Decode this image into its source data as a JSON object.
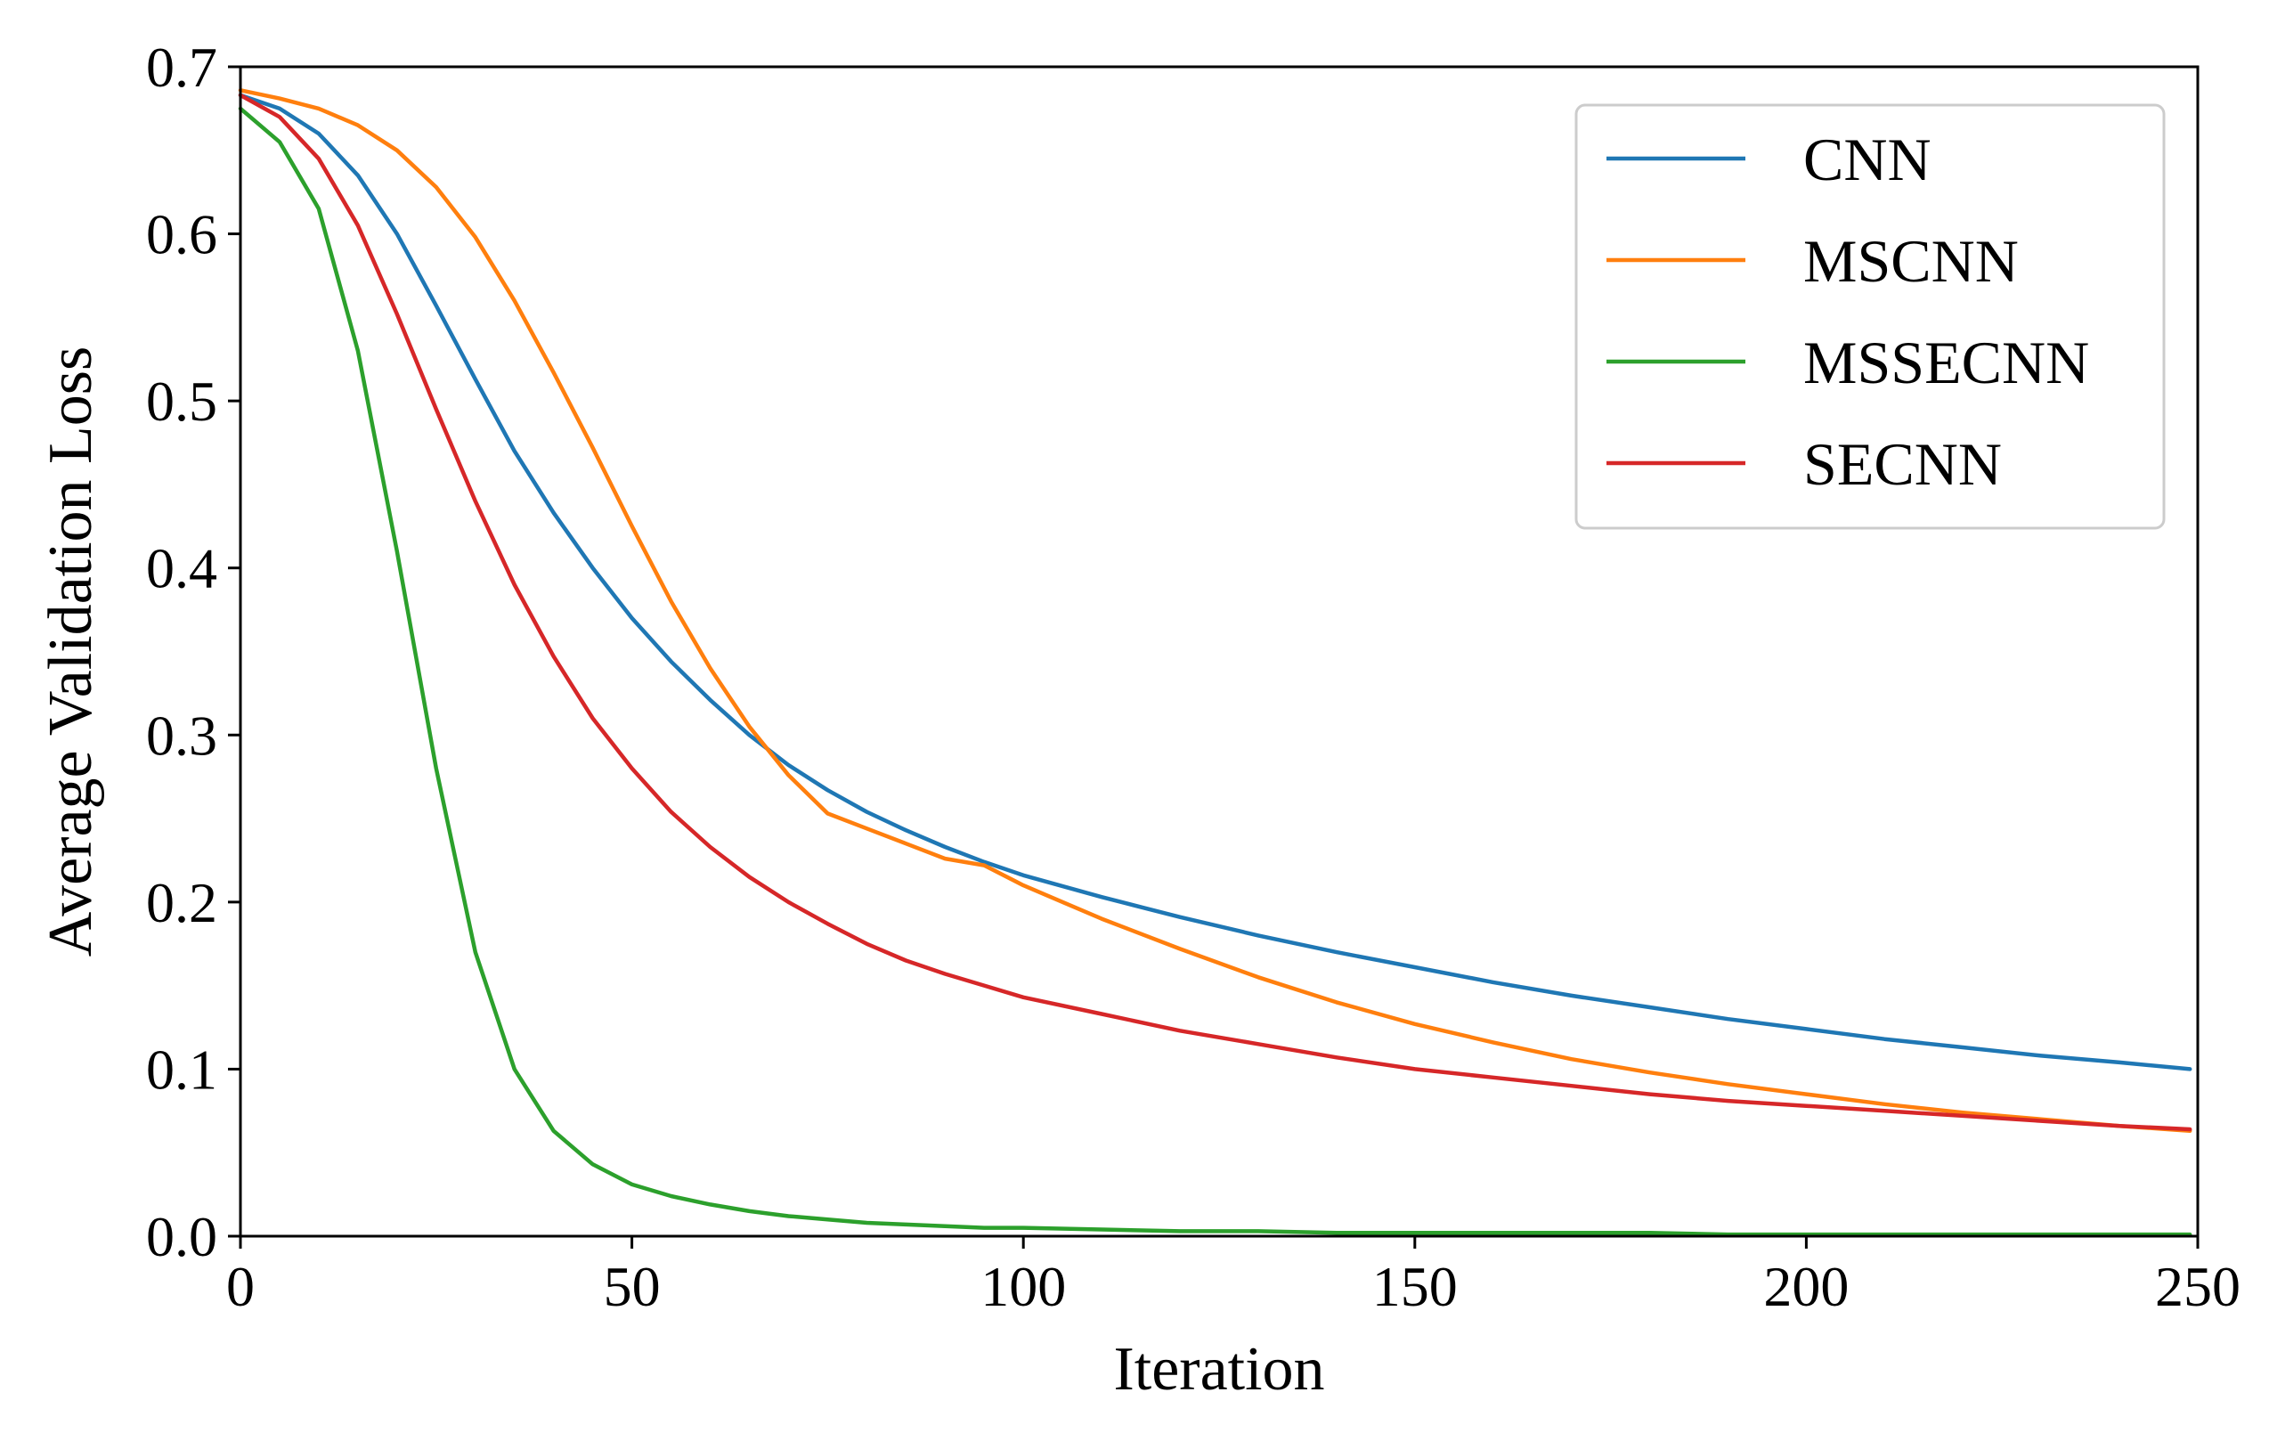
{
  "chart_data": {
    "type": "line",
    "title": "",
    "xlabel": "Iteration",
    "ylabel": "Average Validation Loss",
    "xlim": [
      0,
      250
    ],
    "ylim": [
      0.0,
      0.7
    ],
    "xticks": [
      0,
      50,
      100,
      150,
      200,
      250
    ],
    "xtick_labels": [
      "0",
      "50",
      "100",
      "150",
      "200",
      "250"
    ],
    "yticks": [
      0.0,
      0.1,
      0.2,
      0.3,
      0.4,
      0.5,
      0.6,
      0.7
    ],
    "ytick_labels": [
      "0.0",
      "0.1",
      "0.2",
      "0.3",
      "0.4",
      "0.5",
      "0.6",
      "0.7"
    ],
    "grid": false,
    "legend_position": "top-right",
    "x": [
      0,
      5,
      10,
      15,
      20,
      25,
      30,
      35,
      40,
      45,
      50,
      55,
      60,
      65,
      70,
      75,
      80,
      85,
      90,
      95,
      100,
      110,
      120,
      130,
      140,
      150,
      160,
      170,
      180,
      190,
      200,
      210,
      220,
      230,
      240,
      249
    ],
    "series": [
      {
        "name": "CNN",
        "color": "#1f77b4",
        "values": [
          0.683,
          0.675,
          0.66,
          0.635,
          0.6,
          0.557,
          0.513,
          0.47,
          0.433,
          0.4,
          0.37,
          0.344,
          0.321,
          0.3,
          0.282,
          0.267,
          0.254,
          0.243,
          0.233,
          0.224,
          0.216,
          0.203,
          0.191,
          0.18,
          0.17,
          0.161,
          0.152,
          0.144,
          0.137,
          0.13,
          0.124,
          0.118,
          0.113,
          0.108,
          0.104,
          0.1
        ]
      },
      {
        "name": "MSCNN",
        "color": "#ff7f0e",
        "values": [
          0.686,
          0.681,
          0.675,
          0.665,
          0.65,
          0.628,
          0.598,
          0.56,
          0.517,
          0.472,
          0.425,
          0.38,
          0.34,
          0.305,
          0.276,
          0.253,
          0.244,
          0.235,
          0.226,
          0.222,
          0.21,
          0.19,
          0.172,
          0.155,
          0.14,
          0.127,
          0.116,
          0.106,
          0.098,
          0.091,
          0.085,
          0.079,
          0.074,
          0.07,
          0.066,
          0.063
        ]
      },
      {
        "name": "MSSECNN",
        "color": "#2ca02c",
        "values": [
          0.675,
          0.655,
          0.615,
          0.53,
          0.41,
          0.28,
          0.17,
          0.1,
          0.063,
          0.043,
          0.031,
          0.024,
          0.019,
          0.015,
          0.012,
          0.01,
          0.008,
          0.007,
          0.006,
          0.005,
          0.005,
          0.004,
          0.003,
          0.003,
          0.002,
          0.002,
          0.002,
          0.002,
          0.002,
          0.001,
          0.001,
          0.001,
          0.001,
          0.001,
          0.001,
          0.001
        ]
      },
      {
        "name": "SECNN",
        "color": "#d62728",
        "values": [
          0.683,
          0.67,
          0.645,
          0.605,
          0.552,
          0.495,
          0.44,
          0.39,
          0.347,
          0.31,
          0.28,
          0.254,
          0.233,
          0.215,
          0.2,
          0.187,
          0.175,
          0.165,
          0.157,
          0.15,
          0.143,
          0.133,
          0.123,
          0.115,
          0.107,
          0.1,
          0.095,
          0.09,
          0.085,
          0.081,
          0.078,
          0.075,
          0.072,
          0.069,
          0.066,
          0.064
        ]
      }
    ]
  }
}
